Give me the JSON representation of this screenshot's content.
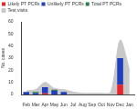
{
  "chart_data": {
    "type": "bar",
    "ylabel": "No. cases",
    "categories": [
      "Feb",
      "Mar",
      "Apr",
      "May",
      "Jun",
      "Jul",
      "Aug",
      "Sep",
      "Oct",
      "Nov",
      "Dec",
      "Jan"
    ],
    "series": [
      {
        "name": "Test visits",
        "type": "line",
        "color": "#c8c8c8",
        "values": [
          3,
          4,
          10,
          5,
          4,
          2,
          1,
          1,
          1,
          2,
          45,
          20
        ]
      },
      {
        "name": "Likely PT PCRs",
        "color": "#e8262a",
        "values": [
          0,
          0,
          1,
          0,
          0,
          0,
          0,
          0,
          0,
          0,
          8,
          0
        ]
      },
      {
        "name": "Unlikely PT PCRs",
        "color": "#1f3fbf",
        "values": [
          2,
          1,
          5,
          3,
          2,
          0,
          0,
          0,
          0,
          0,
          22,
          0
        ]
      },
      {
        "name": "Total PT PCRs",
        "color": "#2e7d4f",
        "values": [
          0,
          1,
          0,
          1,
          0,
          0,
          0,
          0,
          0,
          0,
          0,
          0
        ]
      }
    ],
    "stacked": true,
    "ylim": [
      0,
      60
    ],
    "yticks": [
      0,
      10,
      20,
      30,
      40,
      50,
      60
    ],
    "grid": false,
    "legend": "top"
  }
}
